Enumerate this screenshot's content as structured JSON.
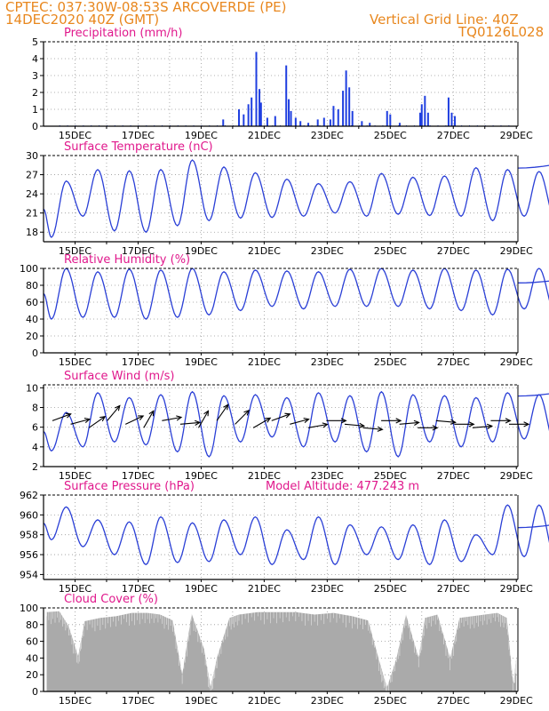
{
  "header": {
    "line1_left": "CPTEC:   037:30W-08:53S   ARCOVERDE (PE)",
    "line2_left": "14DEC2020 40Z (GMT)",
    "line1_right": "Vertical Grid Line: 40Z",
    "line2_right": "TQ0126L028"
  },
  "colors": {
    "header_text": "#e8871e",
    "panel_title": "#e0188c",
    "line_series": "#2a3fd6",
    "bar_series": "#1f3fe0",
    "cloud_fill": "#aaaaaa",
    "grid": "#999999",
    "arrow": "#000000"
  },
  "chart_data": [
    {
      "type": "bar",
      "title": "Precipitation (mm/h)",
      "x_axis": {
        "type": "date",
        "range": [
          "14DEC",
          "29DEC"
        ],
        "tick_labels": [
          "15DEC",
          "17DEC",
          "19DEC",
          "21DEC",
          "23DEC",
          "25DEC",
          "27DEC",
          "29DEC"
        ]
      },
      "ylim": [
        0,
        5
      ],
      "yticks": [
        0,
        1,
        2,
        3,
        4,
        5
      ],
      "grid": true,
      "spikes": [
        {
          "day": 19.7,
          "value": 0.4
        },
        {
          "day": 20.2,
          "value": 1.0
        },
        {
          "day": 20.35,
          "value": 0.7
        },
        {
          "day": 20.5,
          "value": 1.3
        },
        {
          "day": 20.6,
          "value": 1.7
        },
        {
          "day": 20.75,
          "value": 4.4
        },
        {
          "day": 20.85,
          "value": 2.2
        },
        {
          "day": 20.9,
          "value": 1.4
        },
        {
          "day": 21.1,
          "value": 0.5
        },
        {
          "day": 21.35,
          "value": 0.6
        },
        {
          "day": 21.7,
          "value": 3.6
        },
        {
          "day": 21.78,
          "value": 1.6
        },
        {
          "day": 21.85,
          "value": 0.9
        },
        {
          "day": 22.0,
          "value": 0.5
        },
        {
          "day": 22.15,
          "value": 0.3
        },
        {
          "day": 22.4,
          "value": 0.2
        },
        {
          "day": 22.7,
          "value": 0.4
        },
        {
          "day": 22.9,
          "value": 0.5
        },
        {
          "day": 23.1,
          "value": 0.4
        },
        {
          "day": 23.2,
          "value": 1.2
        },
        {
          "day": 23.35,
          "value": 1.0
        },
        {
          "day": 23.5,
          "value": 2.1
        },
        {
          "day": 23.6,
          "value": 3.3
        },
        {
          "day": 23.7,
          "value": 2.3
        },
        {
          "day": 23.8,
          "value": 0.9
        },
        {
          "day": 24.1,
          "value": 0.3
        },
        {
          "day": 24.35,
          "value": 0.2
        },
        {
          "day": 24.9,
          "value": 0.9
        },
        {
          "day": 25.0,
          "value": 0.7
        },
        {
          "day": 25.3,
          "value": 0.2
        },
        {
          "day": 25.95,
          "value": 0.8
        },
        {
          "day": 26.0,
          "value": 1.3
        },
        {
          "day": 26.1,
          "value": 1.8
        },
        {
          "day": 26.2,
          "value": 0.8
        },
        {
          "day": 26.85,
          "value": 1.7
        },
        {
          "day": 26.95,
          "value": 0.8
        },
        {
          "day": 27.05,
          "value": 0.6
        }
      ]
    },
    {
      "type": "line",
      "title": "Surface Temperature (nC)",
      "x_axis": {
        "type": "date",
        "range": [
          "14DEC",
          "29DEC"
        ],
        "tick_labels": [
          "15DEC",
          "17DEC",
          "19DEC",
          "21DEC",
          "23DEC",
          "25DEC",
          "27DEC",
          "29DEC"
        ]
      },
      "ylim": [
        16.5,
        30
      ],
      "yticks": [
        18,
        21,
        24,
        27,
        30
      ],
      "grid": true,
      "daily_peaks": [
        26,
        27.8,
        27.6,
        27.8,
        29.3,
        28.2,
        27.3,
        26.3,
        25.6,
        25.9,
        27.2,
        26.6,
        26.8,
        28.1,
        27.8,
        27.5,
        29.3,
        29.4
      ],
      "daily_troughs": [
        17.2,
        20.5,
        18.2,
        18.0,
        19.0,
        19.8,
        20.2,
        20.3,
        20.5,
        21.0,
        20.5,
        20.8,
        20.6,
        20.5,
        19.8,
        20.5,
        19.8,
        20.3
      ]
    },
    {
      "type": "line",
      "title": "Relative Humidity (%)",
      "x_axis": {
        "type": "date",
        "range": [
          "14DEC",
          "29DEC"
        ],
        "tick_labels": [
          "15DEC",
          "17DEC",
          "19DEC",
          "21DEC",
          "23DEC",
          "25DEC",
          "27DEC",
          "29DEC"
        ]
      },
      "ylim": [
        0,
        100
      ],
      "yticks": [
        0,
        20,
        40,
        60,
        80,
        100
      ],
      "grid": true,
      "daily_peaks": [
        100,
        96,
        99,
        98,
        100,
        96,
        98,
        97,
        96,
        99,
        100,
        98,
        100,
        98,
        99,
        100,
        98,
        90
      ],
      "daily_troughs": [
        40,
        42,
        42,
        40,
        42,
        45,
        50,
        55,
        52,
        55,
        55,
        55,
        52,
        50,
        45,
        52,
        45,
        42
      ]
    },
    {
      "type": "line",
      "title": "Surface Wind (m/s)",
      "x_axis": {
        "type": "date",
        "range": [
          "14DEC",
          "29DEC"
        ],
        "tick_labels": [
          "15DEC",
          "17DEC",
          "19DEC",
          "21DEC",
          "23DEC",
          "25DEC",
          "27DEC",
          "29DEC"
        ]
      },
      "ylim": [
        2,
        10.3
      ],
      "yticks": [
        2,
        4,
        6,
        8,
        10
      ],
      "grid": true,
      "daily_peaks": [
        7.5,
        9.5,
        9.0,
        9.3,
        9.6,
        9.2,
        9.3,
        9.0,
        9.5,
        9.2,
        9.6,
        9.3,
        9.2,
        9.0,
        9.5,
        9.3,
        9.0,
        9.9
      ],
      "daily_troughs": [
        3.6,
        4.0,
        4.5,
        4.2,
        3.5,
        3.0,
        4.5,
        5.0,
        4.0,
        4.5,
        3.5,
        3.0,
        4.5,
        4.0,
        4.5,
        4.8,
        4.0,
        5.0
      ],
      "wind_vectors_deg": [
        200,
        195,
        215,
        230,
        205,
        240,
        190,
        185,
        240,
        235,
        225,
        210,
        200,
        195,
        190,
        180,
        175,
        175,
        180,
        185,
        180,
        175,
        180,
        185,
        180,
        180
      ]
    },
    {
      "type": "line",
      "title": "Surface Pressure (hPa)",
      "annotation": "Model Altitude: 477.243 m",
      "x_axis": {
        "type": "date",
        "range": [
          "14DEC",
          "29DEC"
        ],
        "tick_labels": [
          "15DEC",
          "17DEC",
          "19DEC",
          "21DEC",
          "23DEC",
          "25DEC",
          "27DEC",
          "29DEC"
        ]
      },
      "ylim": [
        953.5,
        962
      ],
      "yticks": [
        954,
        956,
        958,
        960,
        962
      ],
      "grid": true,
      "daily_peaks": [
        960.8,
        959.5,
        959.3,
        959.8,
        959.2,
        959.5,
        959.8,
        958.5,
        959.8,
        959.0,
        958.8,
        959.0,
        959.5,
        958.0,
        961.0,
        961.0,
        959.0,
        959.5
      ],
      "daily_troughs": [
        957.5,
        956.8,
        956.0,
        955.0,
        955.2,
        955.3,
        956.0,
        955.0,
        955.5,
        955.0,
        956.0,
        955.5,
        955.0,
        955.3,
        956.0,
        955.8,
        955.5,
        954.3
      ]
    },
    {
      "type": "area",
      "title": "Cloud Cover (%)",
      "x_axis": {
        "type": "date",
        "range": [
          "14DEC",
          "29DEC"
        ],
        "tick_labels": [
          "15DEC",
          "17DEC",
          "19DEC",
          "21DEC",
          "23DEC",
          "25DEC",
          "27DEC",
          "29DEC"
        ]
      },
      "ylim": [
        0,
        100
      ],
      "yticks": [
        0,
        20,
        40,
        60,
        80,
        100
      ],
      "grid": true,
      "profile": [
        {
          "day": 14.1,
          "value": 95
        },
        {
          "day": 14.5,
          "value": 96
        },
        {
          "day": 14.8,
          "value": 78
        },
        {
          "day": 15.1,
          "value": 42
        },
        {
          "day": 15.3,
          "value": 84
        },
        {
          "day": 15.8,
          "value": 88
        },
        {
          "day": 16.3,
          "value": 90
        },
        {
          "day": 16.8,
          "value": 94
        },
        {
          "day": 17.3,
          "value": 94
        },
        {
          "day": 17.7,
          "value": 92
        },
        {
          "day": 18.1,
          "value": 85
        },
        {
          "day": 18.4,
          "value": 20
        },
        {
          "day": 18.7,
          "value": 93
        },
        {
          "day": 19.1,
          "value": 50
        },
        {
          "day": 19.3,
          "value": 5
        },
        {
          "day": 19.5,
          "value": 40
        },
        {
          "day": 19.9,
          "value": 88
        },
        {
          "day": 20.2,
          "value": 92
        },
        {
          "day": 20.8,
          "value": 95
        },
        {
          "day": 21.4,
          "value": 95
        },
        {
          "day": 22.0,
          "value": 95
        },
        {
          "day": 22.6,
          "value": 92
        },
        {
          "day": 23.2,
          "value": 94
        },
        {
          "day": 23.8,
          "value": 90
        },
        {
          "day": 24.3,
          "value": 85
        },
        {
          "day": 24.7,
          "value": 30
        },
        {
          "day": 24.9,
          "value": 5
        },
        {
          "day": 25.2,
          "value": 40
        },
        {
          "day": 25.5,
          "value": 92
        },
        {
          "day": 25.9,
          "value": 40
        },
        {
          "day": 26.1,
          "value": 88
        },
        {
          "day": 26.5,
          "value": 92
        },
        {
          "day": 26.9,
          "value": 40
        },
        {
          "day": 27.2,
          "value": 88
        },
        {
          "day": 27.6,
          "value": 90
        },
        {
          "day": 28.0,
          "value": 92
        },
        {
          "day": 28.4,
          "value": 94
        },
        {
          "day": 28.7,
          "value": 88
        },
        {
          "day": 28.9,
          "value": 10
        },
        {
          "day": 29.0,
          "value": 40
        }
      ]
    }
  ]
}
